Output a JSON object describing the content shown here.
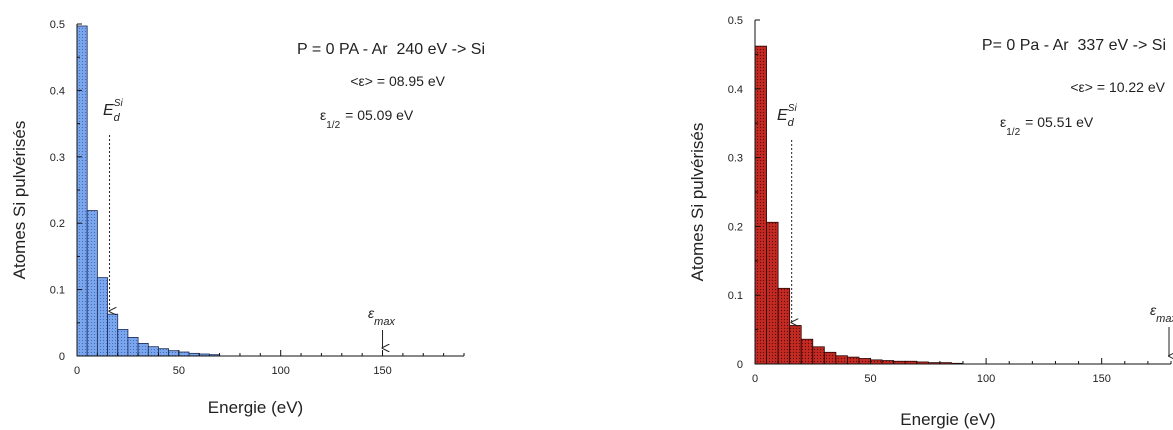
{
  "chart_data": [
    {
      "type": "bar",
      "bin_width": 5,
      "x": [
        0,
        5,
        10,
        15,
        20,
        25,
        30,
        35,
        40,
        45,
        50,
        55,
        60,
        65
      ],
      "values": [
        0.497,
        0.219,
        0.118,
        0.063,
        0.04,
        0.028,
        0.019,
        0.014,
        0.011,
        0.008,
        0.006,
        0.004,
        0.003,
        0.002
      ],
      "xlabel": "Energie (eV)",
      "ylabel": "Atomes Si pulvérisés",
      "xlim": [
        0,
        190
      ],
      "ylim": [
        0,
        0.5
      ],
      "xticks": [
        0,
        50,
        100,
        150
      ],
      "yticks": [
        0,
        0.1,
        0.2,
        0.3,
        0.4,
        0.5
      ],
      "ytick_labels": [
        "0",
        "0.1",
        "0.2",
        "0.3",
        "0.4",
        "0.5"
      ],
      "bar_color": "#7aa6ee",
      "bar_edge": "#1a2a55",
      "annotations": {
        "title": "P = 0 PA - Ar  240 eV -> Si",
        "mean_label": "<ε> = ",
        "mean_value": "08.95 eV",
        "half_sym": "ε",
        "half_sub": "1/2",
        "half_value": "= 05.09 eV",
        "ed_sym": "E",
        "ed_sub": "d",
        "ed_sup": "Si",
        "ed_x": 15,
        "emax_sym": "ε",
        "emax_sub": "max",
        "emax_x": 150
      }
    },
    {
      "type": "bar",
      "bin_width": 5,
      "x": [
        0,
        5,
        10,
        15,
        20,
        25,
        30,
        35,
        40,
        45,
        50,
        55,
        60,
        65,
        70,
        75,
        80,
        85
      ],
      "values": [
        0.462,
        0.206,
        0.11,
        0.056,
        0.036,
        0.025,
        0.017,
        0.012,
        0.01,
        0.008,
        0.006,
        0.005,
        0.004,
        0.004,
        0.003,
        0.002,
        0.002,
        0.001
      ],
      "xlabel": "Energie (eV)",
      "ylabel": "Atomes Si pulvérisés",
      "xlim": [
        0,
        180
      ],
      "ylim": [
        0,
        0.5
      ],
      "xticks": [
        0,
        50,
        100,
        150
      ],
      "yticks": [
        0,
        0.1,
        0.2,
        0.3,
        0.4,
        0.5
      ],
      "ytick_labels": [
        "0",
        "0.1",
        "0.2",
        "0.3",
        "0.4",
        "0.5"
      ],
      "bar_color": "#c22a22",
      "bar_edge": "#2a0505",
      "annotations": {
        "title": "P= 0 Pa - Ar  337 eV -> Si",
        "mean_label": "<ε> = ",
        "mean_value": "10.22 eV",
        "half_sym": "ε",
        "half_sub": "1/2",
        "half_value": "= 05.51 eV",
        "ed_sym": "E",
        "ed_sub": "d",
        "ed_sup": "Si",
        "ed_x": 15,
        "emax_sym": "ε",
        "emax_sub": "max",
        "emax_x": 180
      }
    }
  ]
}
